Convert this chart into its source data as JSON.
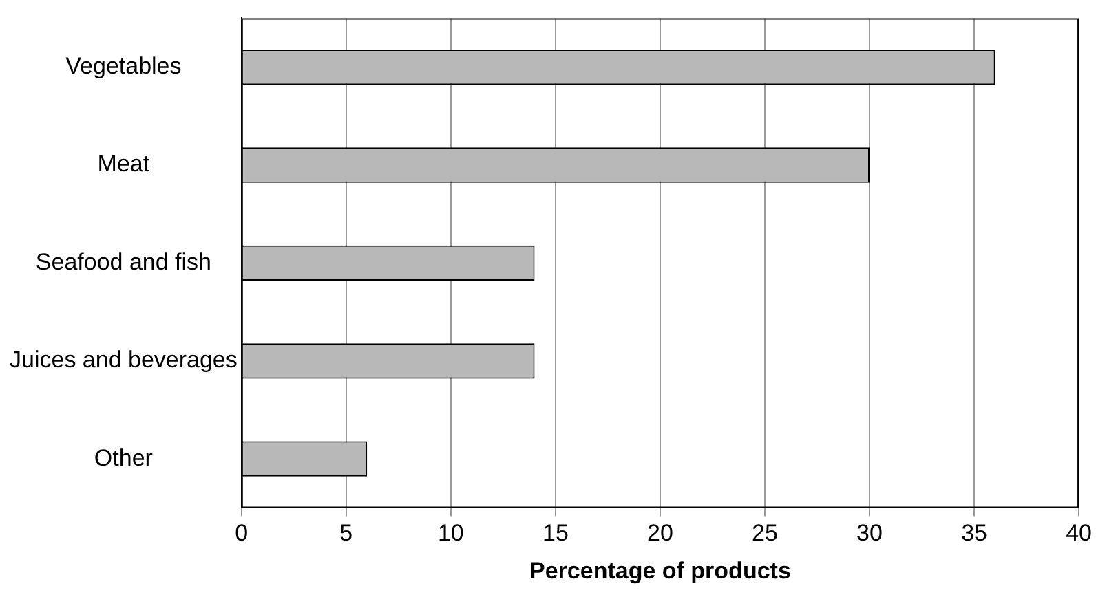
{
  "chart_data": {
    "type": "bar",
    "orientation": "horizontal",
    "xlabel": "Percentage of products",
    "categories": [
      "Vegetables",
      "Meat",
      "Seafood and fish",
      "Juices and beverages",
      "Other"
    ],
    "values": [
      36,
      30,
      14,
      14,
      6
    ],
    "color": "#b8b8b8",
    "xlim": [
      0,
      40
    ],
    "xticks": [
      0,
      5,
      10,
      15,
      20,
      25,
      30,
      35,
      40
    ],
    "grid": "x",
    "legend": false
  }
}
